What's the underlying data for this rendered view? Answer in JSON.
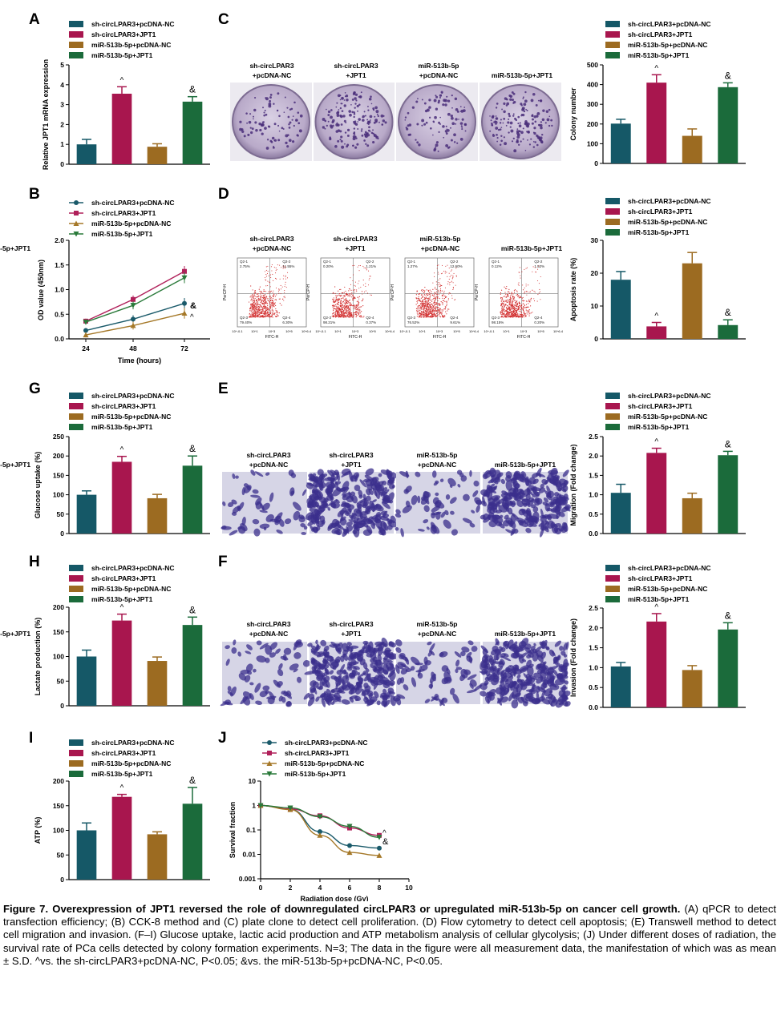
{
  "legend_labels": [
    "sh-circLPAR3+pcDNA-NC",
    "sh-circLPAR3+JPT1",
    "miR-513b-5p+pcDNA-NC",
    "miR-513b-5p+JPT1"
  ],
  "colors": {
    "g1": "#155867",
    "g2": "#a8164e",
    "g3": "#9c6b21",
    "g4": "#1b6b3b",
    "line1": "#1a5a6a",
    "line2": "#b0205a",
    "line3": "#a57828",
    "line4": "#2a7a3a",
    "dot": "#d23030"
  },
  "panel_letters": {
    "A": "A",
    "B": "B",
    "C": "C",
    "D": "D",
    "E": "E",
    "F": "F",
    "G": "G",
    "H": "H",
    "I": "I",
    "J": "J"
  },
  "image_labels": {
    "c1a": "sh-circLPAR3",
    "c1b": "+pcDNA-NC",
    "c2a": "sh-circLPAR3",
    "c2b": "+JPT1",
    "c3a": "miR-513b-5p",
    "c3b": "+pcDNA-NC",
    "c4": "miR-513b-5p+JPT1"
  },
  "flow": {
    "xlabel": "FITC-H",
    "ylabel": "PerCP-H",
    "quadrants": [
      {
        "q1": "Q2-1",
        "q1v": "2.75%",
        "q2": "Q2-2",
        "q2v": "11.55%",
        "q3": "Q2-3",
        "q3v": "79.40%",
        "q4": "Q2-4",
        "q4v": "6.30%"
      },
      {
        "q1": "Q2-1",
        "q1v": "0.20%",
        "q2": "Q2-2",
        "q2v": "1.21%",
        "q3": "Q2-3",
        "q3v": "98.21%",
        "q4": "Q2-4",
        "q4v": "0.37%"
      },
      {
        "q1": "Q2-1",
        "q1v": "1.27%",
        "q2": "Q2-2",
        "q2v": "12.60%",
        "q3": "Q2-3",
        "q3v": "76.52%",
        "q4": "Q2-4",
        "q4v": "9.61%"
      },
      {
        "q1": "Q2-1",
        "q1v": "0.12%",
        "q2": "Q2-2",
        "q2v": "1.52%",
        "q3": "Q2-3",
        "q3v": "98.15%",
        "q4": "Q2-4",
        "q4v": "0.20%"
      }
    ],
    "ticks": [
      "10^-0.1",
      "10^1",
      "10^3",
      "10^5",
      "10^6.4"
    ]
  },
  "chart_data": [
    {
      "id": "A",
      "type": "bar",
      "categories": [
        "sh-circLPAR3+pcDNA-NC",
        "sh-circLPAR3+JPT1",
        "miR-513b-5p+pcDNA-NC",
        "miR-513b-5p+JPT1"
      ],
      "values": [
        1.0,
        3.55,
        0.88,
        3.15
      ],
      "errors": [
        0.25,
        0.35,
        0.15,
        0.25
      ],
      "ylabel": "Relative JPT1 mRNA expression",
      "ylim": [
        0,
        5
      ],
      "yticks": [
        0,
        1,
        2,
        3,
        4,
        5
      ],
      "markers": [
        "",
        "^",
        "",
        "&"
      ]
    },
    {
      "id": "C",
      "type": "bar",
      "categories": [
        "sh-circLPAR3+pcDNA-NC",
        "sh-circLPAR3+JPT1",
        "miR-513b-5p+pcDNA-NC",
        "miR-513b-5p+JPT1"
      ],
      "values": [
        202,
        410,
        140,
        387
      ],
      "errors": [
        22,
        40,
        35,
        22
      ],
      "ylabel": "Colony number",
      "ylim": [
        0,
        500
      ],
      "yticks": [
        0,
        100,
        200,
        300,
        400,
        500
      ],
      "markers": [
        "",
        "^",
        "",
        "&"
      ]
    },
    {
      "id": "B",
      "type": "line",
      "x": [
        24,
        48,
        72
      ],
      "xlabel": "Time (hours)",
      "ylabel": "OD value (450nm)",
      "ylim": [
        0,
        2.0
      ],
      "yticks": [
        "0.0",
        "0.5",
        "1.0",
        "1.5",
        "2.0"
      ],
      "series": [
        {
          "name": "sh-circLPAR3+pcDNA-NC",
          "values": [
            0.17,
            0.4,
            0.72
          ],
          "marker": "circle"
        },
        {
          "name": "sh-circLPAR3+JPT1",
          "values": [
            0.36,
            0.8,
            1.37
          ],
          "marker": "square"
        },
        {
          "name": "miR-513b-5p+pcDNA-NC",
          "values": [
            0.08,
            0.27,
            0.52
          ],
          "marker": "triangle"
        },
        {
          "name": "miR-513b-5p+JPT1",
          "values": [
            0.34,
            0.68,
            1.24
          ],
          "marker": "triangle-down"
        }
      ],
      "markers": [
        "&",
        "^"
      ]
    },
    {
      "id": "D",
      "type": "bar",
      "categories": [
        "sh-circLPAR3+pcDNA-NC",
        "sh-circLPAR3+JPT1",
        "miR-513b-5p+pcDNA-NC",
        "miR-513b-5p+JPT1"
      ],
      "values": [
        18,
        3.8,
        23,
        4.2
      ],
      "errors": [
        2.5,
        1.2,
        3.3,
        1.6
      ],
      "ylabel": "Apoptosis rate (%)",
      "ylim": [
        0,
        30
      ],
      "yticks": [
        0,
        10,
        20,
        30
      ],
      "markers": [
        "",
        "^",
        "",
        "&"
      ]
    },
    {
      "id": "G",
      "type": "bar",
      "categories": [
        "sh-circLPAR3+pcDNA-NC",
        "sh-circLPAR3+JPT1",
        "miR-513b-5p+pcDNA-NC",
        "miR-513b-5p+JPT1"
      ],
      "values": [
        100,
        185,
        91,
        175
      ],
      "errors": [
        10,
        14,
        10,
        25
      ],
      "ylabel": "Glucose uptake (%)",
      "ylim": [
        0,
        250
      ],
      "yticks": [
        0,
        50,
        100,
        150,
        200,
        250
      ],
      "markers": [
        "",
        "^",
        "",
        "&"
      ]
    },
    {
      "id": "E",
      "type": "bar",
      "categories": [
        "sh-circLPAR3+pcDNA-NC",
        "sh-circLPAR3+JPT1",
        "miR-513b-5p+pcDNA-NC",
        "miR-513b-5p+JPT1"
      ],
      "values": [
        1.05,
        2.08,
        0.91,
        2.02
      ],
      "errors": [
        0.22,
        0.12,
        0.13,
        0.1
      ],
      "ylabel": "Migration (Fold change)",
      "ylim": [
        0,
        2.5
      ],
      "yticks": [
        "0.0",
        "0.5",
        "1.0",
        "1.5",
        "2.0",
        "2.5"
      ],
      "markers": [
        "",
        "^",
        "",
        "&"
      ]
    },
    {
      "id": "H",
      "type": "bar",
      "categories": [
        "sh-circLPAR3+pcDNA-NC",
        "sh-circLPAR3+JPT1",
        "miR-513b-5p+pcDNA-NC",
        "miR-513b-5p+JPT1"
      ],
      "values": [
        100,
        173,
        91,
        164
      ],
      "errors": [
        13,
        13,
        8,
        16
      ],
      "ylabel": "Lactate production (%)",
      "ylim": [
        0,
        200
      ],
      "yticks": [
        0,
        50,
        100,
        150,
        200
      ],
      "markers": [
        "",
        "^",
        "",
        "&"
      ]
    },
    {
      "id": "F",
      "type": "bar",
      "categories": [
        "sh-circLPAR3+pcDNA-NC",
        "sh-circLPAR3+JPT1",
        "miR-513b-5p+pcDNA-NC",
        "miR-513b-5p+JPT1"
      ],
      "values": [
        1.03,
        2.16,
        0.94,
        1.96
      ],
      "errors": [
        0.1,
        0.2,
        0.11,
        0.17
      ],
      "ylabel": "Invasion (Fold change)",
      "ylim": [
        0,
        2.5
      ],
      "yticks": [
        "0.0",
        "0.5",
        "1.0",
        "1.5",
        "2.0",
        "2.5"
      ],
      "markers": [
        "",
        "^",
        "",
        "&"
      ]
    },
    {
      "id": "I",
      "type": "bar",
      "categories": [
        "sh-circLPAR3+pcDNA-NC",
        "sh-circLPAR3+JPT1",
        "miR-513b-5p+pcDNA-NC",
        "miR-513b-5p+JPT1"
      ],
      "values": [
        100,
        168,
        92,
        154
      ],
      "errors": [
        15,
        5,
        5,
        33
      ],
      "ylabel": "ATP (%)",
      "ylim": [
        0,
        200
      ],
      "yticks": [
        0,
        50,
        100,
        150,
        200
      ],
      "markers": [
        "",
        "^",
        "",
        "&"
      ]
    },
    {
      "id": "J",
      "type": "line",
      "x": [
        0,
        2,
        4,
        6,
        8
      ],
      "xlabel": "Radiation dose (Gy)",
      "ylabel": "Survival fraction",
      "xlim": [
        0,
        10
      ],
      "xticks": [
        0,
        2,
        4,
        6,
        8,
        10
      ],
      "yscale": "log",
      "ylim": [
        0.001,
        10
      ],
      "yticks": [
        "0.001",
        "0.01",
        "0.1",
        "1",
        "10"
      ],
      "series": [
        {
          "name": "sh-circLPAR3+pcDNA-NC",
          "values": [
            1,
            0.7,
            0.085,
            0.023,
            0.018
          ],
          "marker": "circle"
        },
        {
          "name": "sh-circLPAR3+JPT1",
          "values": [
            1,
            0.72,
            0.38,
            0.12,
            0.06
          ],
          "marker": "square"
        },
        {
          "name": "miR-513b-5p+pcDNA-NC",
          "values": [
            1,
            0.68,
            0.06,
            0.012,
            0.009
          ],
          "marker": "triangle"
        },
        {
          "name": "miR-513b-5p+JPT1",
          "values": [
            1,
            0.8,
            0.35,
            0.14,
            0.05
          ],
          "marker": "triangle-down"
        }
      ],
      "markers": [
        "^",
        "&"
      ]
    }
  ],
  "caption": {
    "fig_title": "Figure 7. Overexpression of JPT1 reversed the role of downregulated circLPAR3 or upregulated miR-513b-5p on cancer cell growth.",
    "body": "(A) qPCR to detect transfection efficiency; (B) CCK-8 method and (C) plate clone to detect cell proliferation. (D) Flow cytometry to detect cell apoptosis; (E) Transwell method to detect cell migration and invasion. (F–I) Glucose uptake, lactic acid production and ATP metabolism analysis of cellular glycolysis; (J) Under different doses of radiation, the survival rate of PCa cells detected by colony formation experiments. N=3; The data in the figure were all measurement data, the manifestation of which was as mean ± S.D. ^vs. the sh-circLPAR3+pcDNA-NC, P<0.05; &vs. the miR-513b-5p+pcDNA-NC, P<0.05."
  }
}
